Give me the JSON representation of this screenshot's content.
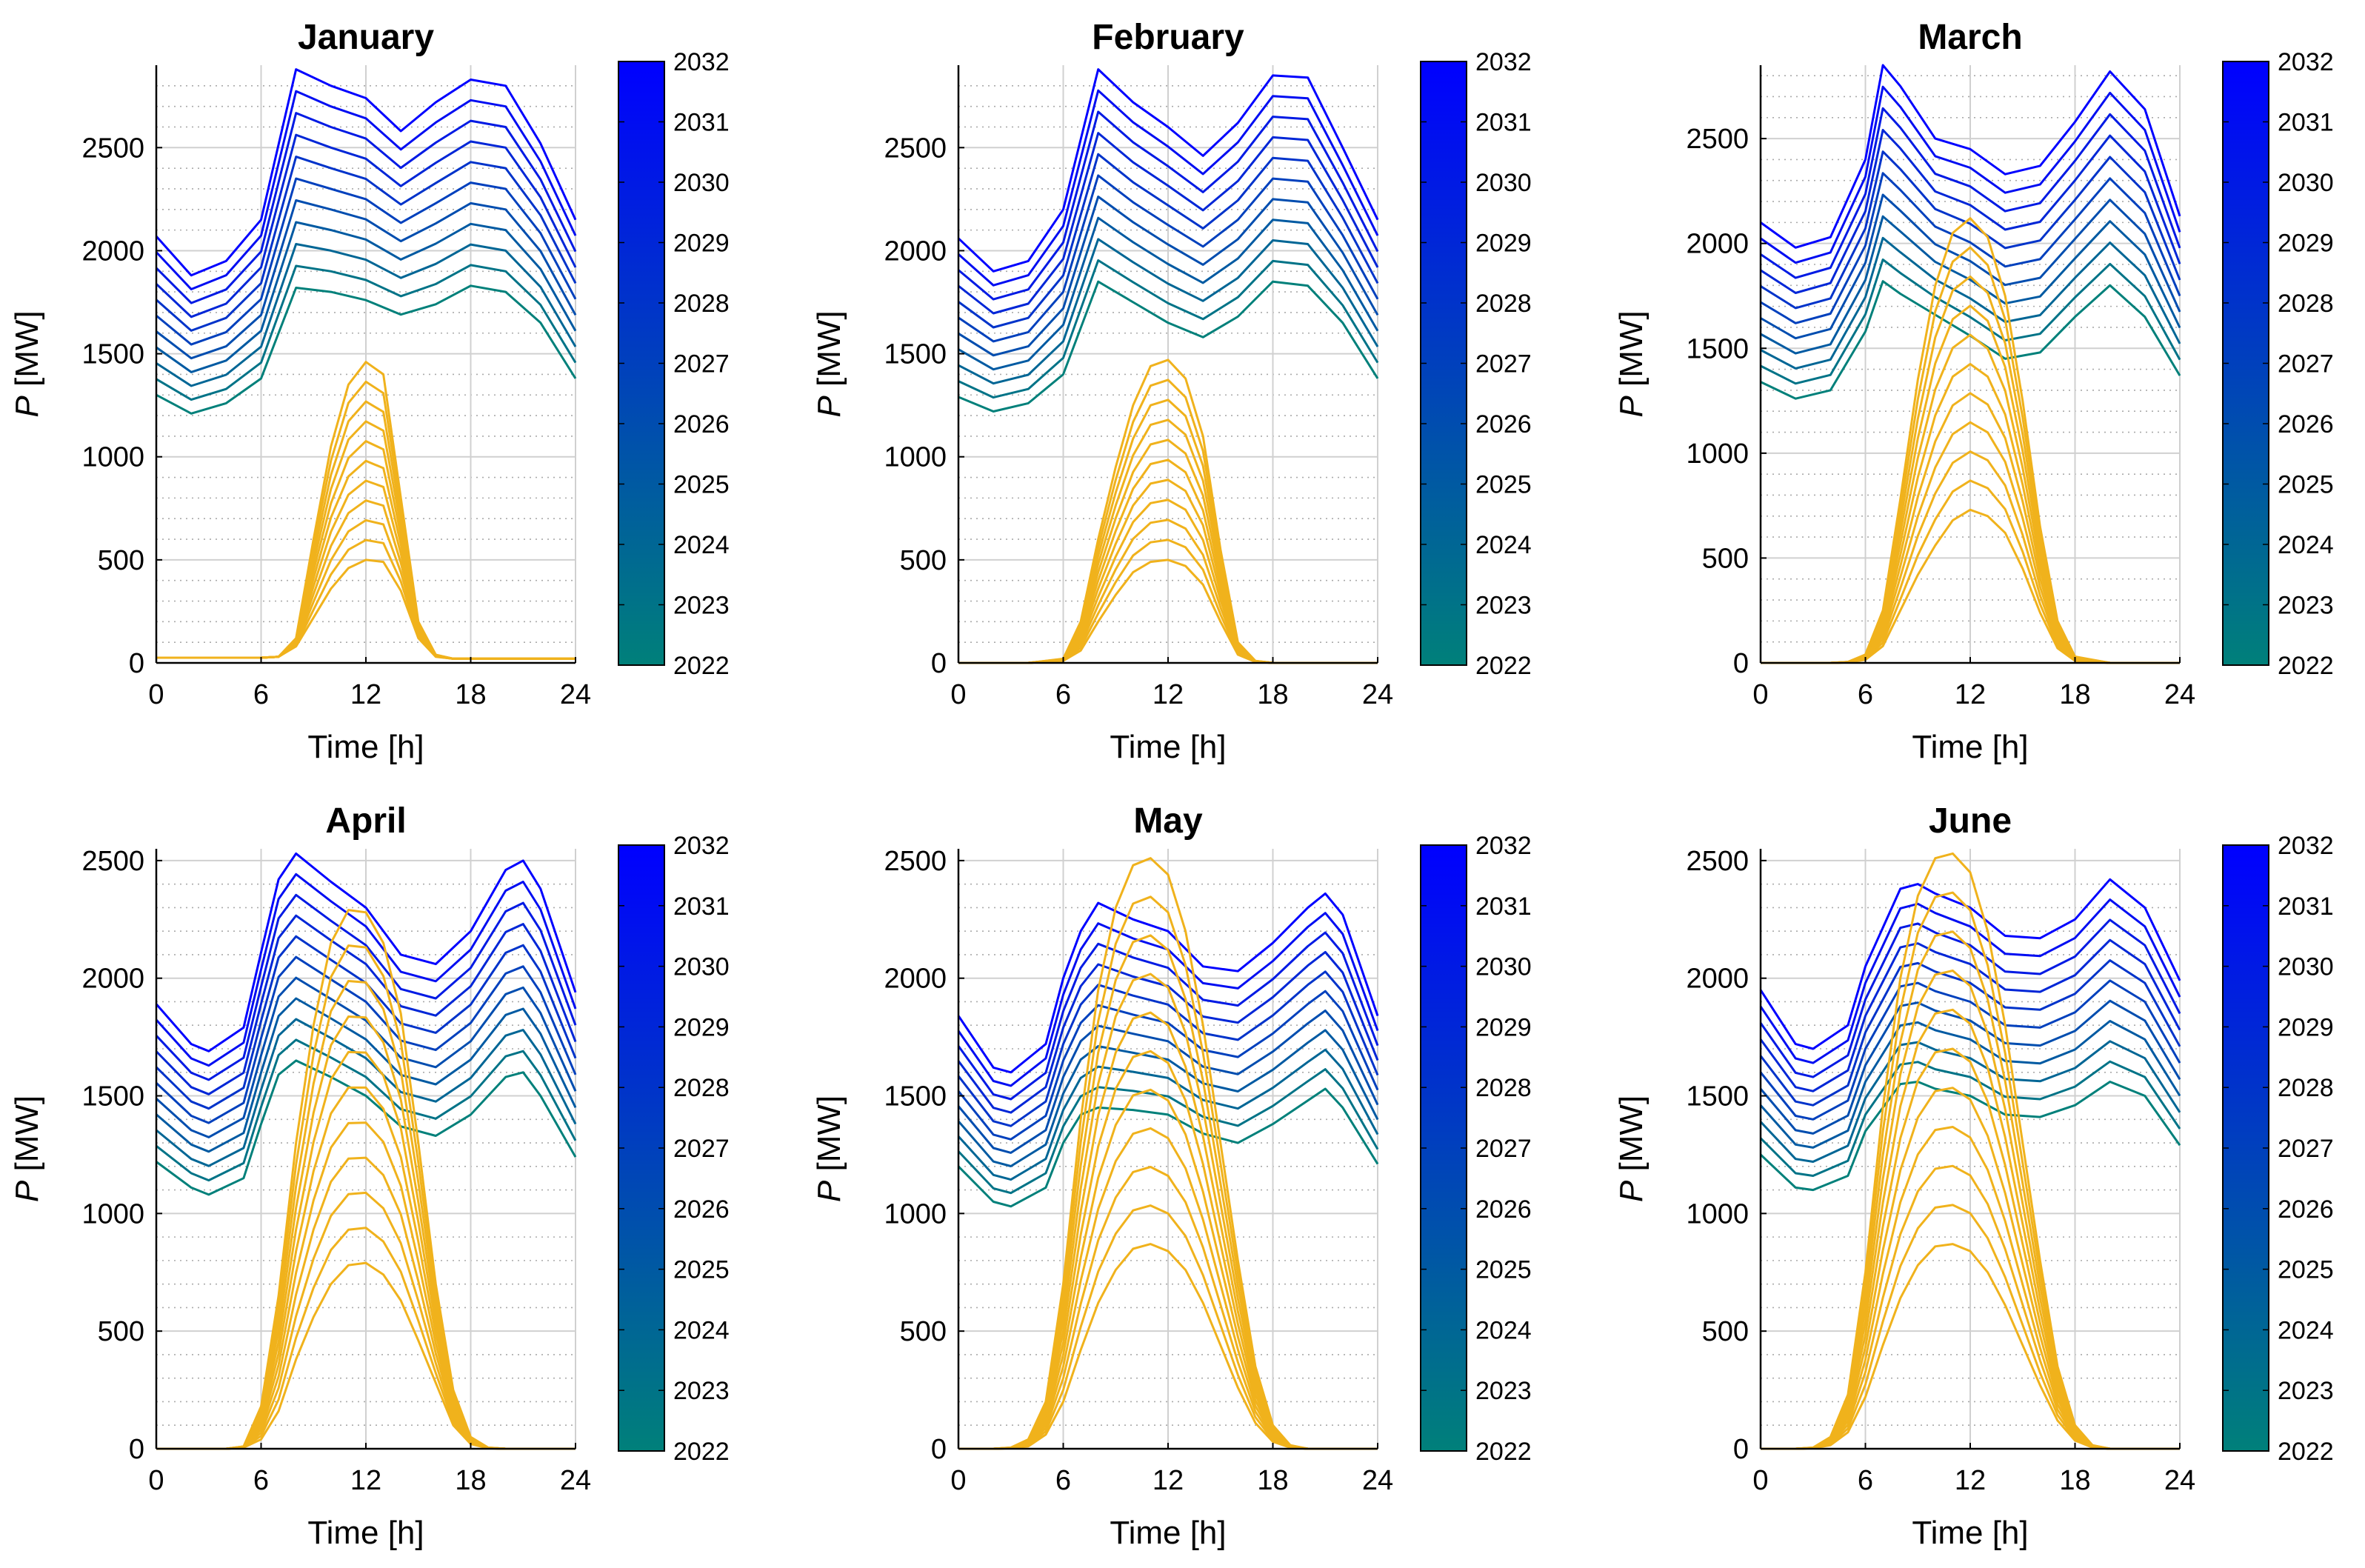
{
  "figure": {
    "xlabel": "Time [h]",
    "ylabel_var": "P",
    "ylabel_unit": "[MW]"
  },
  "colors": {
    "demand_start": "#00807a",
    "demand_end": "#0000ff",
    "solar": "#f0b21c",
    "grid_major": "#d0d0d0",
    "grid_minor": "#aaaaaa"
  },
  "colorbar": {
    "years": [
      "2022",
      "2023",
      "2024",
      "2025",
      "2026",
      "2027",
      "2028",
      "2029",
      "2030",
      "2031",
      "2032"
    ]
  },
  "chart_data": [
    {
      "type": "line",
      "title": "January",
      "xlabel": "Time [h]",
      "ylabel": "P [MW]",
      "xlim": [
        0,
        24
      ],
      "ylim": [
        0,
        2900
      ],
      "xticks": [
        0,
        6,
        12,
        18,
        24
      ],
      "yticks": [
        0,
        500,
        1000,
        1500,
        2000,
        2500
      ],
      "demand_series": [
        {
          "name": "2022",
          "x": [
            0,
            2,
            4,
            6,
            8,
            10,
            12,
            14,
            16,
            18,
            20,
            22,
            24
          ],
          "values": [
            1300,
            1210,
            1260,
            1380,
            1820,
            1800,
            1760,
            1690,
            1740,
            1830,
            1800,
            1650,
            1380
          ]
        },
        {
          "name": "2032",
          "x": [
            0,
            2,
            4,
            6,
            8,
            10,
            12,
            14,
            16,
            18,
            20,
            22,
            24
          ],
          "values": [
            2070,
            1880,
            1950,
            2150,
            2880,
            2800,
            2740,
            2580,
            2720,
            2830,
            2800,
            2520,
            2150
          ]
        }
      ],
      "solar_series": [
        {
          "name": "lowest",
          "x": [
            0,
            2,
            4,
            6,
            7,
            8,
            9,
            10,
            11,
            12,
            13,
            14,
            15,
            16,
            17,
            18,
            20,
            22,
            24
          ],
          "values": [
            25,
            25,
            25,
            25,
            30,
            80,
            220,
            360,
            460,
            500,
            490,
            350,
            120,
            30,
            20,
            20,
            20,
            20,
            20
          ]
        },
        {
          "name": "highest",
          "x": [
            0,
            2,
            4,
            6,
            7,
            8,
            9,
            10,
            11,
            12,
            13,
            14,
            15,
            16,
            17,
            18,
            20,
            22,
            24
          ],
          "values": [
            25,
            25,
            25,
            25,
            30,
            120,
            600,
            1050,
            1350,
            1460,
            1400,
            800,
            200,
            40,
            20,
            20,
            20,
            20,
            20
          ]
        }
      ]
    },
    {
      "type": "line",
      "title": "February",
      "xlabel": "Time [h]",
      "ylabel": "P [MW]",
      "xlim": [
        0,
        24
      ],
      "ylim": [
        0,
        2900
      ],
      "xticks": [
        0,
        6,
        12,
        18,
        24
      ],
      "yticks": [
        0,
        500,
        1000,
        1500,
        2000,
        2500
      ],
      "demand_series": [
        {
          "name": "2022",
          "x": [
            0,
            2,
            4,
            6,
            8,
            10,
            12,
            14,
            16,
            18,
            20,
            22,
            24
          ],
          "values": [
            1290,
            1220,
            1260,
            1400,
            1850,
            1750,
            1650,
            1580,
            1680,
            1850,
            1830,
            1650,
            1380
          ]
        },
        {
          "name": "2032",
          "x": [
            0,
            2,
            4,
            6,
            8,
            10,
            12,
            14,
            16,
            18,
            20,
            22,
            24
          ],
          "values": [
            2060,
            1900,
            1950,
            2200,
            2880,
            2720,
            2600,
            2460,
            2620,
            2850,
            2840,
            2500,
            2150
          ]
        }
      ],
      "solar_series": [
        {
          "name": "lowest",
          "x": [
            0,
            2,
            4,
            6,
            7,
            8,
            9,
            10,
            11,
            12,
            13,
            14,
            15,
            16,
            17,
            18,
            20,
            22,
            24
          ],
          "values": [
            0,
            0,
            0,
            10,
            60,
            200,
            330,
            440,
            490,
            500,
            470,
            380,
            200,
            40,
            5,
            0,
            0,
            0,
            0
          ]
        },
        {
          "name": "highest",
          "x": [
            0,
            2,
            4,
            6,
            7,
            8,
            9,
            10,
            11,
            12,
            13,
            14,
            15,
            16,
            17,
            18,
            20,
            22,
            24
          ],
          "values": [
            0,
            0,
            0,
            20,
            200,
            600,
            950,
            1250,
            1440,
            1470,
            1380,
            1100,
            550,
            100,
            10,
            0,
            0,
            0,
            0
          ]
        }
      ]
    },
    {
      "type": "line",
      "title": "March",
      "xlabel": "Time [h]",
      "ylabel": "P [MW]",
      "xlim": [
        0,
        24
      ],
      "ylim": [
        0,
        2850
      ],
      "xticks": [
        0,
        6,
        12,
        18,
        24
      ],
      "yticks": [
        0,
        500,
        1000,
        1500,
        2000,
        2500
      ],
      "demand_series": [
        {
          "name": "2022",
          "x": [
            0,
            2,
            4,
            6,
            7,
            8,
            10,
            12,
            14,
            16,
            18,
            20,
            22,
            24
          ],
          "values": [
            1340,
            1260,
            1300,
            1580,
            1820,
            1760,
            1660,
            1560,
            1450,
            1480,
            1650,
            1800,
            1650,
            1370
          ]
        },
        {
          "name": "2032",
          "x": [
            0,
            2,
            4,
            6,
            7,
            8,
            10,
            12,
            14,
            16,
            18,
            20,
            22,
            24
          ],
          "values": [
            2100,
            1980,
            2030,
            2400,
            2850,
            2750,
            2500,
            2450,
            2330,
            2370,
            2580,
            2820,
            2640,
            2130
          ]
        }
      ],
      "solar_series": [
        {
          "name": "lowest",
          "x": [
            0,
            2,
            4,
            5,
            6,
            7,
            8,
            9,
            10,
            11,
            12,
            13,
            14,
            15,
            16,
            17,
            18,
            20,
            22,
            24
          ],
          "values": [
            0,
            0,
            0,
            2,
            15,
            80,
            250,
            420,
            560,
            680,
            730,
            700,
            620,
            450,
            240,
            70,
            10,
            0,
            0,
            0
          ]
        },
        {
          "name": "highest",
          "x": [
            0,
            2,
            4,
            5,
            6,
            7,
            8,
            9,
            10,
            11,
            12,
            13,
            14,
            15,
            16,
            17,
            18,
            20,
            22,
            24
          ],
          "values": [
            0,
            0,
            0,
            5,
            40,
            250,
            780,
            1350,
            1800,
            2050,
            2120,
            2030,
            1750,
            1250,
            650,
            200,
            30,
            0,
            0,
            0
          ]
        }
      ]
    },
    {
      "type": "line",
      "title": "April",
      "xlabel": "Time [h]",
      "ylabel": "P [MW]",
      "xlim": [
        0,
        24
      ],
      "ylim": [
        0,
        2550
      ],
      "xticks": [
        0,
        6,
        12,
        18,
        24
      ],
      "yticks": [
        0,
        500,
        1000,
        1500,
        2000,
        2500
      ],
      "demand_series": [
        {
          "name": "2022",
          "x": [
            0,
            2,
            3,
            5,
            6,
            7,
            8,
            10,
            12,
            14,
            16,
            18,
            20,
            21,
            22,
            24
          ],
          "values": [
            1220,
            1110,
            1080,
            1150,
            1380,
            1590,
            1650,
            1580,
            1500,
            1370,
            1330,
            1420,
            1580,
            1600,
            1500,
            1240
          ]
        },
        {
          "name": "2032",
          "x": [
            0,
            2,
            3,
            5,
            6,
            7,
            8,
            10,
            12,
            14,
            16,
            18,
            20,
            21,
            22,
            24
          ],
          "values": [
            1890,
            1720,
            1690,
            1790,
            2110,
            2420,
            2530,
            2410,
            2300,
            2100,
            2060,
            2200,
            2460,
            2500,
            2380,
            1940
          ]
        }
      ],
      "solar_series": [
        {
          "name": "lowest",
          "x": [
            0,
            2,
            4,
            5,
            6,
            7,
            8,
            9,
            10,
            11,
            12,
            13,
            14,
            15,
            16,
            17,
            18,
            19,
            20,
            22,
            24
          ],
          "values": [
            0,
            0,
            0,
            5,
            40,
            160,
            380,
            560,
            700,
            780,
            790,
            740,
            630,
            460,
            280,
            100,
            20,
            2,
            0,
            0,
            0
          ]
        },
        {
          "name": "highest",
          "x": [
            0,
            2,
            4,
            5,
            6,
            7,
            8,
            9,
            10,
            11,
            12,
            13,
            14,
            15,
            16,
            17,
            18,
            19,
            20,
            22,
            24
          ],
          "values": [
            0,
            0,
            0,
            10,
            180,
            650,
            1300,
            1800,
            2150,
            2290,
            2280,
            2150,
            1850,
            1300,
            700,
            250,
            50,
            5,
            0,
            0,
            0
          ]
        }
      ]
    },
    {
      "type": "line",
      "title": "May",
      "xlabel": "Time [h]",
      "ylabel": "P [MW]",
      "xlim": [
        0,
        24
      ],
      "ylim": [
        0,
        2550
      ],
      "xticks": [
        0,
        6,
        12,
        18,
        24
      ],
      "yticks": [
        0,
        500,
        1000,
        1500,
        2000,
        2500
      ],
      "demand_series": [
        {
          "name": "2022",
          "x": [
            0,
            2,
            3,
            5,
            6,
            7,
            8,
            10,
            12,
            14,
            16,
            18,
            20,
            21,
            22,
            24
          ],
          "values": [
            1200,
            1050,
            1030,
            1110,
            1300,
            1420,
            1450,
            1440,
            1420,
            1340,
            1300,
            1380,
            1480,
            1530,
            1450,
            1210
          ]
        },
        {
          "name": "2032",
          "x": [
            0,
            2,
            3,
            5,
            6,
            7,
            8,
            10,
            12,
            14,
            16,
            18,
            20,
            21,
            22,
            24
          ],
          "values": [
            1840,
            1620,
            1600,
            1720,
            2000,
            2200,
            2320,
            2250,
            2200,
            2050,
            2030,
            2150,
            2300,
            2360,
            2270,
            1840
          ]
        }
      ],
      "solar_series": [
        {
          "name": "lowest",
          "x": [
            0,
            2,
            3,
            4,
            5,
            6,
            7,
            8,
            9,
            10,
            11,
            12,
            13,
            14,
            15,
            16,
            17,
            18,
            19,
            20,
            22,
            24
          ],
          "values": [
            0,
            0,
            2,
            10,
            60,
            200,
            420,
            620,
            760,
            850,
            870,
            840,
            760,
            620,
            440,
            260,
            110,
            30,
            5,
            0,
            0,
            0
          ]
        },
        {
          "name": "highest",
          "x": [
            0,
            2,
            3,
            4,
            5,
            6,
            7,
            8,
            9,
            10,
            11,
            12,
            13,
            14,
            15,
            16,
            17,
            18,
            19,
            20,
            22,
            24
          ],
          "values": [
            0,
            0,
            5,
            40,
            200,
            700,
            1400,
            1950,
            2300,
            2480,
            2510,
            2440,
            2200,
            1800,
            1300,
            800,
            350,
            100,
            15,
            0,
            0,
            0
          ]
        }
      ]
    },
    {
      "type": "line",
      "title": "June",
      "xlabel": "Time [h]",
      "ylabel": "P [MW]",
      "xlim": [
        0,
        24
      ],
      "ylim": [
        0,
        2550
      ],
      "xticks": [
        0,
        6,
        12,
        18,
        24
      ],
      "yticks": [
        0,
        500,
        1000,
        1500,
        2000,
        2500
      ],
      "demand_series": [
        {
          "name": "2022",
          "x": [
            0,
            2,
            3,
            5,
            6,
            8,
            9,
            10,
            12,
            14,
            16,
            18,
            20,
            22,
            24
          ],
          "values": [
            1250,
            1110,
            1100,
            1160,
            1350,
            1550,
            1560,
            1530,
            1500,
            1420,
            1410,
            1460,
            1560,
            1500,
            1290
          ]
        },
        {
          "name": "2032",
          "x": [
            0,
            2,
            3,
            5,
            6,
            8,
            9,
            10,
            12,
            14,
            16,
            18,
            20,
            22,
            24
          ],
          "values": [
            1950,
            1720,
            1700,
            1800,
            2050,
            2380,
            2400,
            2360,
            2300,
            2180,
            2170,
            2250,
            2420,
            2300,
            1990
          ]
        }
      ],
      "solar_series": [
        {
          "name": "lowest",
          "x": [
            0,
            2,
            3,
            4,
            5,
            6,
            7,
            8,
            9,
            10,
            11,
            12,
            13,
            14,
            15,
            16,
            17,
            18,
            19,
            20,
            22,
            24
          ],
          "values": [
            0,
            0,
            2,
            15,
            70,
            220,
            440,
            640,
            780,
            860,
            870,
            840,
            750,
            610,
            440,
            270,
            120,
            35,
            5,
            0,
            0,
            0
          ]
        },
        {
          "name": "highest",
          "x": [
            0,
            2,
            3,
            4,
            5,
            6,
            7,
            8,
            9,
            10,
            11,
            12,
            13,
            14,
            15,
            16,
            17,
            18,
            19,
            20,
            22,
            24
          ],
          "values": [
            0,
            0,
            5,
            50,
            230,
            750,
            1450,
            2000,
            2350,
            2510,
            2530,
            2450,
            2200,
            1800,
            1300,
            800,
            350,
            100,
            15,
            0,
            0,
            0
          ]
        }
      ]
    }
  ]
}
